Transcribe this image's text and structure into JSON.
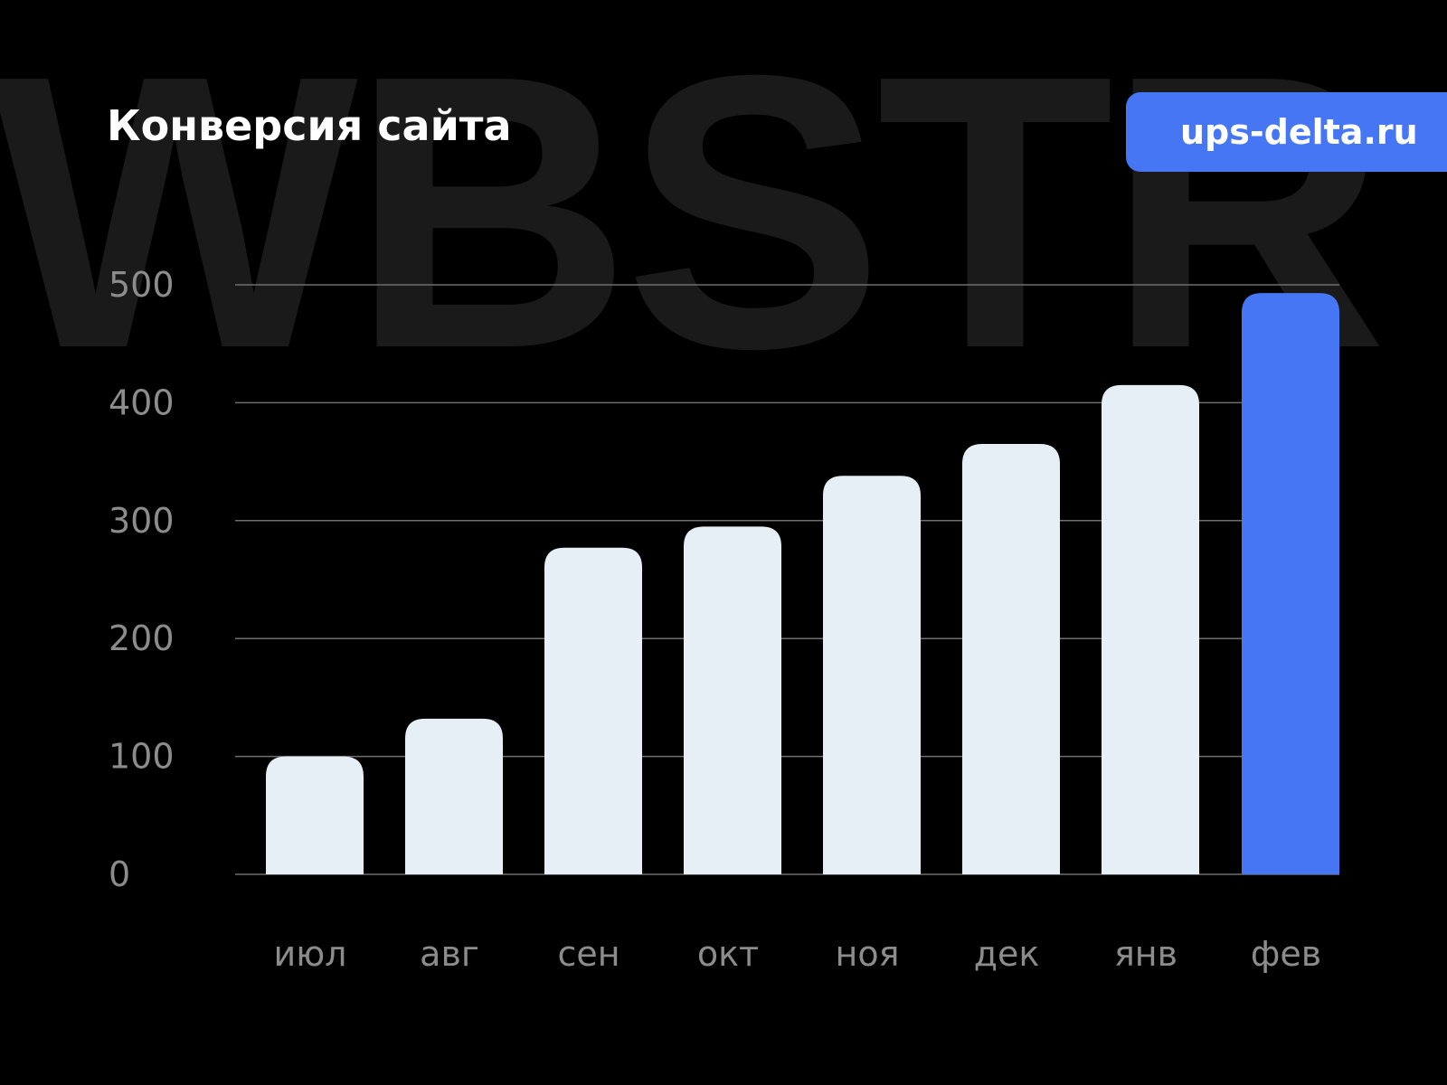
{
  "watermark": "WBSTR",
  "badge": {
    "label": "ups-delta.ru",
    "color": "#4676f4"
  },
  "chart_data": {
    "type": "bar",
    "title": "Конверсия сайта",
    "categories": [
      "июл",
      "авг",
      "сен",
      "окт",
      "ноя",
      "дек",
      "янв",
      "фев"
    ],
    "values": [
      100,
      132,
      277,
      295,
      338,
      365,
      415,
      493
    ],
    "ylim": [
      0,
      500
    ],
    "yticks": [
      "0",
      "100",
      "200",
      "300",
      "400",
      "500"
    ],
    "grid": true,
    "colors": {
      "bar": "#e6eef6",
      "highlight": "#4676f4",
      "grid": "#6e6e6e",
      "tick_label": "#8c8c8c"
    },
    "highlight_index": 7
  }
}
